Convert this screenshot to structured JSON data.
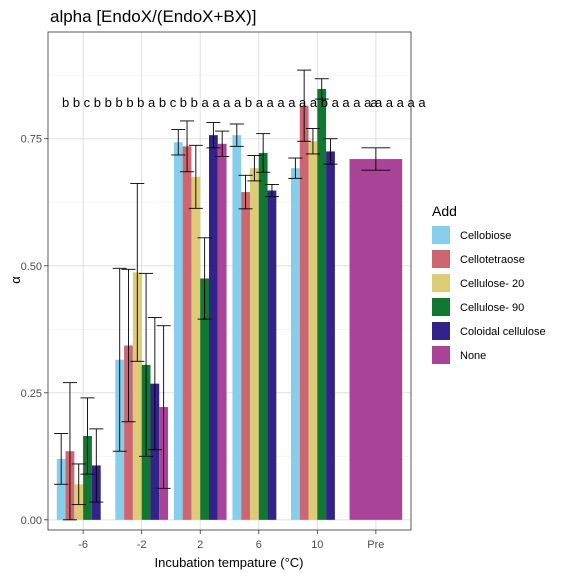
{
  "chart_data": {
    "type": "bar",
    "title": "alpha [EndoX/(EndoX+BX)]",
    "xlabel": "Incubation tempature (°C)",
    "ylabel": "α",
    "categories": [
      "-6",
      "-2",
      "2",
      "6",
      "10",
      "Pre"
    ],
    "ylim": [
      -0.02,
      0.96
    ],
    "yticks": [
      0.0,
      0.25,
      0.5,
      0.75
    ],
    "ytick_labels": [
      "0.00",
      "0.25",
      "0.50",
      "0.75"
    ],
    "grid": true,
    "legend": {
      "title": "Add",
      "position": "right"
    },
    "series": [
      {
        "name": "Cellobiose",
        "color": "#87CEEB",
        "values": [
          0.12,
          0.315,
          0.743,
          0.757,
          0.692,
          null
        ],
        "errors": [
          0.05,
          0.18,
          0.025,
          0.022,
          0.02,
          null
        ]
      },
      {
        "name": "Cellotetraose",
        "color": "#CD6670",
        "values": [
          0.135,
          0.343,
          0.735,
          0.645,
          0.815,
          null
        ],
        "errors": [
          0.135,
          0.15,
          0.05,
          0.033,
          0.07,
          null
        ]
      },
      {
        "name": "Cellulose- 20",
        "color": "#DDCC77",
        "values": [
          0.07,
          0.487,
          0.675,
          0.692,
          0.745,
          null
        ],
        "errors": [
          0.04,
          0.175,
          0.062,
          0.025,
          0.025,
          null
        ]
      },
      {
        "name": "Cellulose- 90",
        "color": "#117733",
        "values": [
          0.165,
          0.305,
          0.475,
          0.722,
          0.848,
          null
        ],
        "errors": [
          0.075,
          0.18,
          0.08,
          0.038,
          0.02,
          null
        ]
      },
      {
        "name": "Coloidal cellulose",
        "color": "#332288",
        "values": [
          0.107,
          0.268,
          0.757,
          0.648,
          0.725,
          null
        ],
        "errors": [
          0.072,
          0.13,
          0.025,
          0.012,
          0.025,
          null
        ]
      },
      {
        "name": "None",
        "color": "#AA4499",
        "values": [
          null,
          0.222,
          0.74,
          null,
          null,
          0.71
        ],
        "errors": [
          null,
          0.16,
          0.025,
          null,
          null,
          0.022
        ]
      }
    ],
    "annotations": {
      "letters": "b b c b b b b b a b c b b a a a a b a a a a a a b a a a a a a a a a",
      "pre_letter": "a",
      "letter_y": 0.82
    }
  }
}
